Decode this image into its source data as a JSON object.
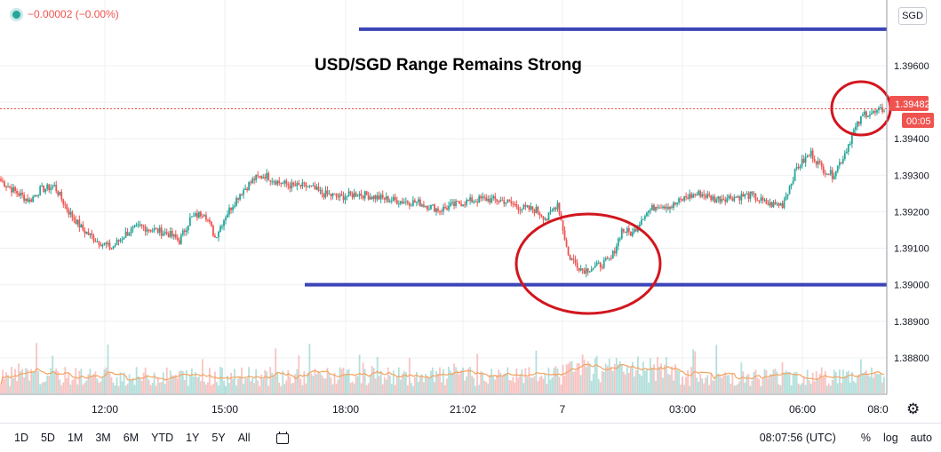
{
  "status": {
    "change": "−0.00002 (−0.00%)"
  },
  "currency": "SGD",
  "annotation_title": "USD/SGD Range Remains Strong",
  "price_tag": "1.39482",
  "countdown": "00:05",
  "bottom_bar": {
    "ranges": [
      "1D",
      "5D",
      "1M",
      "3M",
      "6M",
      "YTD",
      "1Y",
      "5Y",
      "All"
    ],
    "time": "08:07:56 (UTC)",
    "percent": "%",
    "log": "log",
    "auto": "auto"
  },
  "colors": {
    "up": "#26a69a",
    "down": "#ef5350",
    "ma": "#f4a460",
    "line": "#3c45b8",
    "circle": "#d2161e"
  },
  "chart_data": {
    "type": "candlestick",
    "title": "USD/SGD Range Remains Strong",
    "xlabel": "",
    "ylabel": "",
    "ylim": [
      1.387,
      1.3978
    ],
    "y_ticks": [
      1.388,
      1.389,
      1.39,
      1.391,
      1.392,
      1.393,
      1.394,
      1.395,
      1.396
    ],
    "y_tick_labels": [
      "1.38800",
      "1.38900",
      "1.39000",
      "1.39100",
      "1.39200",
      "1.39300",
      "1.39400",
      "1.39500",
      "1.39600"
    ],
    "x_tick_labels": [
      "12:00",
      "15:00",
      "18:00",
      "21:02",
      "7",
      "03:00",
      "06:00",
      "08:0"
    ],
    "price_anchors": [
      [
        0,
        1.39285
      ],
      [
        8,
        1.39255
      ],
      [
        16,
        1.3923
      ],
      [
        22,
        1.3926
      ],
      [
        30,
        1.3927
      ],
      [
        38,
        1.392
      ],
      [
        46,
        1.3915
      ],
      [
        54,
        1.3912
      ],
      [
        62,
        1.391
      ],
      [
        70,
        1.3914
      ],
      [
        78,
        1.3916
      ],
      [
        86,
        1.3915
      ],
      [
        94,
        1.3914
      ],
      [
        100,
        1.3912
      ],
      [
        106,
        1.3918
      ],
      [
        114,
        1.392
      ],
      [
        120,
        1.3913
      ],
      [
        126,
        1.3919
      ],
      [
        134,
        1.3925
      ],
      [
        142,
        1.3929
      ],
      [
        148,
        1.393
      ],
      [
        156,
        1.3928
      ],
      [
        164,
        1.3927
      ],
      [
        172,
        1.3927
      ],
      [
        180,
        1.3925
      ],
      [
        190,
        1.3924
      ],
      [
        200,
        1.3925
      ],
      [
        210,
        1.3924
      ],
      [
        222,
        1.3923
      ],
      [
        234,
        1.39225
      ],
      [
        246,
        1.39205
      ],
      [
        258,
        1.39225
      ],
      [
        270,
        1.39235
      ],
      [
        282,
        1.3923
      ],
      [
        292,
        1.3921
      ],
      [
        300,
        1.39205
      ],
      [
        306,
        1.3918
      ],
      [
        312,
        1.39225
      ],
      [
        318,
        1.3908
      ],
      [
        326,
        1.3904
      ],
      [
        334,
        1.3905
      ],
      [
        342,
        1.3907
      ],
      [
        348,
        1.3915
      ],
      [
        354,
        1.3914
      ],
      [
        360,
        1.3919
      ],
      [
        368,
        1.3922
      ],
      [
        376,
        1.39215
      ],
      [
        384,
        1.3924
      ],
      [
        392,
        1.3925
      ],
      [
        400,
        1.39235
      ],
      [
        410,
        1.3924
      ],
      [
        420,
        1.39245
      ],
      [
        430,
        1.3922
      ],
      [
        438,
        1.3922
      ],
      [
        446,
        1.3932
      ],
      [
        454,
        1.3936
      ],
      [
        460,
        1.3932
      ],
      [
        466,
        1.393
      ],
      [
        472,
        1.3935
      ],
      [
        478,
        1.3942
      ],
      [
        484,
        1.3947
      ],
      [
        490,
        1.3947
      ],
      [
        495,
        1.39482
      ]
    ],
    "support_line": 1.39,
    "resistance_line": 1.397,
    "last_price": 1.39482,
    "moving_average": true
  }
}
